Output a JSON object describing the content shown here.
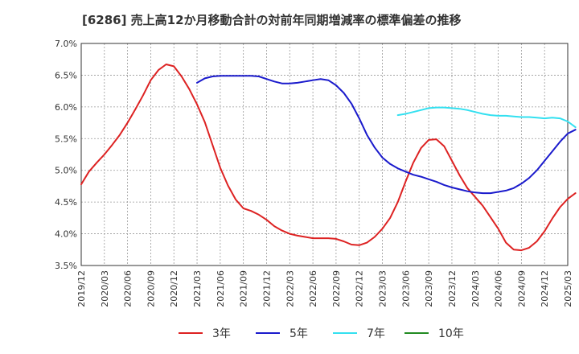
{
  "chart_data": {
    "type": "line",
    "title": "[6286]  売上高12か月移動合計の対前年同期増減率の標準偏差の推移",
    "xlabel": "",
    "ylabel": "",
    "ylim": [
      3.5,
      7.0
    ],
    "y_ticks": [
      "7.0%",
      "6.5%",
      "6.0%",
      "5.5%",
      "5.0%",
      "4.5%",
      "4.0%",
      "3.5%"
    ],
    "y_tick_values": [
      7.0,
      6.5,
      6.0,
      5.5,
      5.0,
      4.5,
      4.0,
      3.5
    ],
    "x_ticks": [
      "2019/12",
      "2020/03",
      "2020/06",
      "2020/09",
      "2020/12",
      "2021/03",
      "2021/06",
      "2021/09",
      "2021/12",
      "2022/03",
      "2022/06",
      "2022/09",
      "2022/12",
      "2023/03",
      "2023/06",
      "2023/09",
      "2023/12",
      "2024/03",
      "2024/06",
      "2024/09",
      "2024/12",
      "2025/03"
    ],
    "grid": true,
    "legend_position": "bottom",
    "series": [
      {
        "name": "3年",
        "color": "#dd2222",
        "values": [
          4.78,
          4.98,
          5.12,
          5.25,
          5.4,
          5.56,
          5.75,
          5.96,
          6.18,
          6.42,
          6.58,
          6.67,
          6.64,
          6.48,
          6.28,
          6.04,
          5.76,
          5.4,
          5.04,
          4.76,
          4.54,
          4.4,
          4.36,
          4.3,
          4.22,
          4.12,
          4.05,
          4.0,
          3.97,
          3.95,
          3.93,
          3.93,
          3.93,
          3.92,
          3.88,
          3.83,
          3.82,
          3.86,
          3.95,
          4.08,
          4.25,
          4.5,
          4.82,
          5.12,
          5.35,
          5.48,
          5.49,
          5.38,
          5.15,
          4.92,
          4.72,
          4.58,
          4.44,
          4.26,
          4.08,
          3.86,
          3.75,
          3.74,
          3.78,
          3.88,
          4.04,
          4.24,
          4.42,
          4.55,
          4.64
        ]
      },
      {
        "name": "5年",
        "color": "#1a1acc",
        "values": [
          null,
          null,
          null,
          null,
          null,
          null,
          null,
          null,
          null,
          null,
          null,
          null,
          null,
          null,
          null,
          6.38,
          6.45,
          6.48,
          6.49,
          6.49,
          6.49,
          6.49,
          6.49,
          6.48,
          6.44,
          6.4,
          6.37,
          6.37,
          6.38,
          6.4,
          6.42,
          6.44,
          6.42,
          6.34,
          6.22,
          6.05,
          5.82,
          5.56,
          5.36,
          5.2,
          5.1,
          5.03,
          4.98,
          4.93,
          4.9,
          4.86,
          4.82,
          4.77,
          4.73,
          4.7,
          4.67,
          4.65,
          4.64,
          4.64,
          4.66,
          4.68,
          4.72,
          4.79,
          4.88,
          5.0,
          5.15,
          5.3,
          5.45,
          5.58,
          5.64
        ]
      },
      {
        "name": "7年",
        "color": "#33e0f0",
        "values": [
          null,
          null,
          null,
          null,
          null,
          null,
          null,
          null,
          null,
          null,
          null,
          null,
          null,
          null,
          null,
          null,
          null,
          null,
          null,
          null,
          null,
          null,
          null,
          null,
          null,
          null,
          null,
          null,
          null,
          null,
          null,
          null,
          null,
          null,
          null,
          null,
          null,
          null,
          null,
          null,
          null,
          5.87,
          5.89,
          5.92,
          5.95,
          5.98,
          5.99,
          5.99,
          5.98,
          5.97,
          5.95,
          5.92,
          5.89,
          5.87,
          5.86,
          5.86,
          5.85,
          5.84,
          5.84,
          5.83,
          5.82,
          5.83,
          5.82,
          5.77,
          5.68
        ]
      },
      {
        "name": "10年",
        "color": "#228b22",
        "values": []
      }
    ]
  }
}
